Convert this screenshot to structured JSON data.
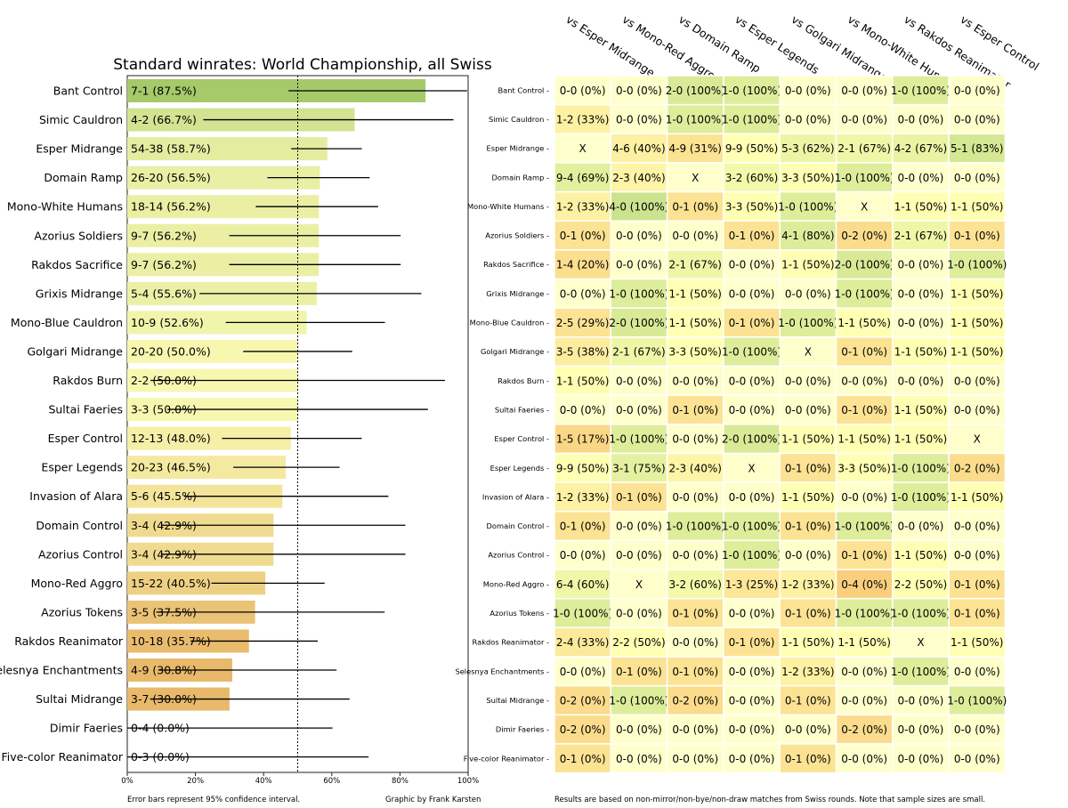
{
  "chart_data": [
    {
      "type": "bar",
      "orientation": "horizontal",
      "title": "Standard winrates: World Championship, all Swiss",
      "xlim": [
        0,
        100
      ],
      "x_ticks": [
        "0%",
        "20%",
        "40%",
        "60%",
        "80%",
        "100%"
      ],
      "reference_line": 50,
      "categories": [
        "Bant Control",
        "Simic Cauldron",
        "Esper Midrange",
        "Domain Ramp",
        "Mono-White Humans",
        "Azorius Soldiers",
        "Rakdos Sacrifice",
        "Grixis Midrange",
        "Mono-Blue Cauldron",
        "Golgari Midrange",
        "Rakdos Burn",
        "Sultai Faeries",
        "Esper Control",
        "Esper Legends",
        "Invasion of Alara",
        "Domain Control",
        "Azorius Control",
        "Mono-Red Aggro",
        "Azorius Tokens",
        "Rakdos Reanimator",
        "Selesnya Enchantments",
        "Sultai Midrange",
        "Dimir Faeries",
        "Five-color Reanimator"
      ],
      "labels": [
        "7-1 (87.5%)",
        "4-2 (66.7%)",
        "54-38 (58.7%)",
        "26-20 (56.5%)",
        "18-14 (56.2%)",
        "9-7 (56.2%)",
        "9-7 (56.2%)",
        "5-4 (55.6%)",
        "10-9 (52.6%)",
        "20-20 (50.0%)",
        "2-2 (50.0%)",
        "3-3 (50.0%)",
        "12-13 (48.0%)",
        "20-23 (46.5%)",
        "5-6 (45.5%)",
        "3-4 (42.9%)",
        "3-4 (42.9%)",
        "15-22 (40.5%)",
        "3-5 (37.5%)",
        "10-18 (35.7%)",
        "4-9 (30.8%)",
        "3-7 (30.0%)",
        "0-4 (0.0%)",
        "0-3 (0.0%)"
      ],
      "values": [
        87.5,
        66.7,
        58.7,
        56.5,
        56.2,
        56.2,
        56.2,
        55.6,
        52.6,
        50.0,
        50.0,
        50.0,
        48.0,
        46.5,
        45.5,
        42.9,
        42.9,
        40.5,
        37.5,
        35.7,
        30.8,
        30.0,
        0.0,
        0.0
      ],
      "ci_low": [
        47.3,
        22.3,
        48.1,
        41.1,
        37.7,
        29.9,
        29.9,
        21.2,
        28.9,
        34.0,
        6.8,
        11.8,
        27.8,
        31.1,
        16.7,
        9.9,
        9.9,
        24.7,
        8.5,
        18.6,
        9.1,
        6.7,
        0.0,
        0.0
      ],
      "ci_high": [
        99.7,
        95.7,
        68.8,
        71.1,
        73.6,
        80.2,
        80.2,
        86.3,
        75.6,
        66.0,
        93.2,
        88.2,
        68.8,
        62.3,
        76.6,
        81.6,
        81.6,
        57.9,
        75.5,
        55.9,
        61.4,
        65.2,
        60.2,
        70.8
      ],
      "xlabel": "",
      "ylabel": ""
    },
    {
      "type": "heatmap",
      "columns": [
        "vs Esper Midrange",
        "vs Mono-Red Aggro",
        "vs Domain Ramp",
        "vs Esper Legends",
        "vs Golgari Midrange",
        "vs Mono-White Humans",
        "vs Rakdos Reanimator",
        "vs Esper Control"
      ],
      "rows": [
        "Bant Control",
        "Simic Cauldron",
        "Esper Midrange",
        "Domain Ramp",
        "Mono-White Humans",
        "Azorius Soldiers",
        "Rakdos Sacrifice",
        "Grixis Midrange",
        "Mono-Blue Cauldron",
        "Golgari Midrange",
        "Rakdos Burn",
        "Sultai Faeries",
        "Esper Control",
        "Esper Legends",
        "Invasion of Alara",
        "Domain Control",
        "Azorius Control",
        "Mono-Red Aggro",
        "Azorius Tokens",
        "Rakdos Reanimator",
        "Selesnya Enchantments",
        "Sultai Midrange",
        "Dimir Faeries",
        "Five-color Reanimator"
      ],
      "cells": [
        [
          "0-0 (0%)",
          "0-0 (0%)",
          "2-0 (100%)",
          "1-0 (100%)",
          "0-0 (0%)",
          "0-0 (0%)",
          "1-0 (100%)",
          "0-0 (0%)"
        ],
        [
          "1-2 (33%)",
          "0-0 (0%)",
          "1-0 (100%)",
          "1-0 (100%)",
          "0-0 (0%)",
          "0-0 (0%)",
          "0-0 (0%)",
          "0-0 (0%)"
        ],
        [
          "X",
          "4-6 (40%)",
          "4-9 (31%)",
          "9-9 (50%)",
          "5-3 (62%)",
          "2-1 (67%)",
          "4-2 (67%)",
          "5-1 (83%)"
        ],
        [
          "9-4 (69%)",
          "2-3 (40%)",
          "X",
          "3-2 (60%)",
          "3-3 (50%)",
          "1-0 (100%)",
          "0-0 (0%)",
          "0-0 (0%)"
        ],
        [
          "1-2 (33%)",
          "4-0 (100%)",
          "0-1 (0%)",
          "3-3 (50%)",
          "1-0 (100%)",
          "X",
          "1-1 (50%)",
          "1-1 (50%)"
        ],
        [
          "0-1 (0%)",
          "0-0 (0%)",
          "0-0 (0%)",
          "0-1 (0%)",
          "4-1 (80%)",
          "0-2 (0%)",
          "2-1 (67%)",
          "0-1 (0%)"
        ],
        [
          "1-4 (20%)",
          "0-0 (0%)",
          "2-1 (67%)",
          "0-0 (0%)",
          "1-1 (50%)",
          "2-0 (100%)",
          "0-0 (0%)",
          "1-0 (100%)"
        ],
        [
          "0-0 (0%)",
          "1-0 (100%)",
          "1-1 (50%)",
          "0-0 (0%)",
          "0-0 (0%)",
          "1-0 (100%)",
          "0-0 (0%)",
          "1-1 (50%)"
        ],
        [
          "2-5 (29%)",
          "2-0 (100%)",
          "1-1 (50%)",
          "0-1 (0%)",
          "1-0 (100%)",
          "1-1 (50%)",
          "0-0 (0%)",
          "1-1 (50%)"
        ],
        [
          "3-5 (38%)",
          "2-1 (67%)",
          "3-3 (50%)",
          "1-0 (100%)",
          "X",
          "0-1 (0%)",
          "1-1 (50%)",
          "1-1 (50%)"
        ],
        [
          "1-1 (50%)",
          "0-0 (0%)",
          "0-0 (0%)",
          "0-0 (0%)",
          "0-0 (0%)",
          "0-0 (0%)",
          "0-0 (0%)",
          "0-0 (0%)"
        ],
        [
          "0-0 (0%)",
          "0-0 (0%)",
          "0-1 (0%)",
          "0-0 (0%)",
          "0-0 (0%)",
          "0-1 (0%)",
          "1-1 (50%)",
          "0-0 (0%)"
        ],
        [
          "1-5 (17%)",
          "1-0 (100%)",
          "0-0 (0%)",
          "2-0 (100%)",
          "1-1 (50%)",
          "1-1 (50%)",
          "1-1 (50%)",
          "X"
        ],
        [
          "9-9 (50%)",
          "3-1 (75%)",
          "2-3 (40%)",
          "X",
          "0-1 (0%)",
          "3-3 (50%)",
          "1-0 (100%)",
          "0-2 (0%)"
        ],
        [
          "1-2 (33%)",
          "0-1 (0%)",
          "0-0 (0%)",
          "0-0 (0%)",
          "1-1 (50%)",
          "0-0 (0%)",
          "1-0 (100%)",
          "1-1 (50%)"
        ],
        [
          "0-1 (0%)",
          "0-0 (0%)",
          "1-0 (100%)",
          "1-0 (100%)",
          "0-1 (0%)",
          "1-0 (100%)",
          "0-0 (0%)",
          "0-0 (0%)"
        ],
        [
          "0-0 (0%)",
          "0-0 (0%)",
          "0-0 (0%)",
          "1-0 (100%)",
          "0-0 (0%)",
          "0-1 (0%)",
          "1-1 (50%)",
          "0-0 (0%)"
        ],
        [
          "6-4 (60%)",
          "X",
          "3-2 (60%)",
          "1-3 (25%)",
          "1-2 (33%)",
          "0-4 (0%)",
          "2-2 (50%)",
          "0-1 (0%)"
        ],
        [
          "1-0 (100%)",
          "0-0 (0%)",
          "0-1 (0%)",
          "0-0 (0%)",
          "0-1 (0%)",
          "1-0 (100%)",
          "1-0 (100%)",
          "0-1 (0%)"
        ],
        [
          "2-4 (33%)",
          "2-2 (50%)",
          "0-0 (0%)",
          "0-1 (0%)",
          "1-1 (50%)",
          "1-1 (50%)",
          "X",
          "1-1 (50%)"
        ],
        [
          "0-0 (0%)",
          "0-1 (0%)",
          "0-1 (0%)",
          "0-0 (0%)",
          "1-2 (33%)",
          "0-0 (0%)",
          "1-0 (100%)",
          "0-0 (0%)"
        ],
        [
          "0-2 (0%)",
          "1-0 (100%)",
          "0-2 (0%)",
          "0-0 (0%)",
          "0-1 (0%)",
          "0-0 (0%)",
          "0-0 (0%)",
          "1-0 (100%)"
        ],
        [
          "0-2 (0%)",
          "0-0 (0%)",
          "0-0 (0%)",
          "0-0 (0%)",
          "0-0 (0%)",
          "0-2 (0%)",
          "0-0 (0%)",
          "0-0 (0%)"
        ],
        [
          "0-1 (0%)",
          "0-0 (0%)",
          "0-0 (0%)",
          "0-0 (0%)",
          "0-1 (0%)",
          "0-0 (0%)",
          "0-0 (0%)",
          "0-0 (0%)"
        ]
      ]
    }
  ],
  "footer": {
    "error_note": "Error bars represent 95% confidence interval.",
    "credit": "Graphic by Frank Karsten",
    "results_note": "Results are based on non-mirror/non-bye/non-draw matches from Swiss rounds. Note that sample sizes are small."
  },
  "colors": {
    "bar_high": "#a6c96a",
    "bar_mid": "#f7f7b0",
    "bar_low": "#e8b96a",
    "cell_good": "#b2d67a",
    "cell_neutral": "#ffffb3",
    "cell_bad": "#f6b560",
    "cell_empty": "#ffffcc"
  }
}
